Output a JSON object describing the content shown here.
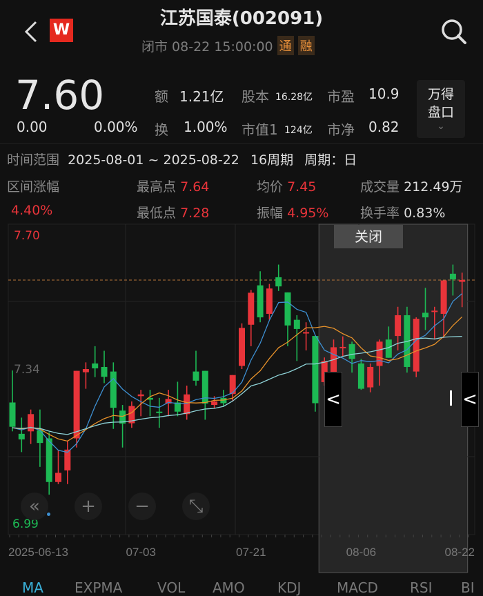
{
  "header": {
    "title": "江苏国泰(002091)",
    "status": "闭市 08-22 15:00:00",
    "badges": [
      "通",
      "融"
    ],
    "back_icon": "chevron-left-icon",
    "logo_letter": "W",
    "search_icon": "search-icon"
  },
  "quote": {
    "price": "7.60",
    "change": "0.00",
    "change_pct": "0.00%",
    "stats": [
      {
        "label": "额",
        "value": "1.21亿"
      },
      {
        "label": "股本",
        "value": "16.28亿"
      },
      {
        "label": "市盈",
        "value": "10.9"
      },
      {
        "label": "换",
        "value": "1.00%"
      },
      {
        "label": "市值1",
        "value": "124亿"
      },
      {
        "label": "市净",
        "value": "0.82"
      }
    ],
    "wind_button": [
      "万得",
      "盘口"
    ]
  },
  "range": {
    "label": "时间范围",
    "dates": "2025-08-01 ~ 2025-08-22",
    "periods": "16周期",
    "cycle": "周期：日",
    "change_label": "区间涨幅",
    "change_value": "4.40%",
    "high_label": "最高点",
    "high_value": "7.64",
    "low_label": "最低点",
    "low_value": "7.28",
    "avg_label": "均价",
    "avg_value": "7.45",
    "amp_label": "振幅",
    "amp_value": "4.95%",
    "vol_label": "成交量",
    "vol_value": "212.49万",
    "turnover_label": "换手率",
    "turnover_value": "0.83%"
  },
  "chart_data": {
    "type": "candlestick",
    "y_labels": {
      "top": "7.70",
      "mid": "7.34",
      "bottom": "6.99"
    },
    "reference_price": 7.6,
    "close_button": "关闭",
    "x_ticks": [
      {
        "index": 4,
        "label": "2025-06-13"
      },
      {
        "index": 14,
        "label": "07-03"
      },
      {
        "index": 26,
        "label": "07-21"
      },
      {
        "index": 38,
        "label": "08-06"
      },
      {
        "index": 49,
        "label": "08-22"
      }
    ],
    "selection": {
      "start_index": 34,
      "end_index": 49
    },
    "colors": {
      "up": "#e8343a",
      "down": "#1db954",
      "ma5": "#3d8fd1",
      "ma10": "#e8922a",
      "ma20": "#8fd3d8"
    },
    "ohlc": [
      [
        7.252,
        7.343,
        7.17,
        7.183
      ],
      [
        7.163,
        7.209,
        7.111,
        7.147
      ],
      [
        7.17,
        7.232,
        7.134,
        7.219
      ],
      [
        7.173,
        7.232,
        7.069,
        7.137
      ],
      [
        7.15,
        7.167,
        6.99,
        7.026
      ],
      [
        7.026,
        7.115,
        7.02,
        7.052
      ],
      [
        7.059,
        7.144,
        7.02,
        7.118
      ],
      [
        7.15,
        7.342,
        7.124,
        7.342
      ],
      [
        7.338,
        7.366,
        7.291,
        7.347
      ],
      [
        7.363,
        7.412,
        7.324,
        7.349
      ],
      [
        7.353,
        7.399,
        7.307,
        7.325
      ],
      [
        7.34,
        7.366,
        7.177,
        7.237
      ],
      [
        7.229,
        7.245,
        7.124,
        7.192
      ],
      [
        7.193,
        7.255,
        7.18,
        7.242
      ],
      [
        7.27,
        7.288,
        7.213,
        7.275
      ],
      [
        7.265,
        7.288,
        7.213,
        7.26
      ],
      [
        7.226,
        7.265,
        7.18,
        7.223
      ],
      [
        7.249,
        7.288,
        7.213,
        7.262
      ],
      [
        7.252,
        7.311,
        7.213,
        7.226
      ],
      [
        7.219,
        7.3,
        7.203,
        7.275
      ],
      [
        7.34,
        7.399,
        7.3,
        7.314
      ],
      [
        7.342,
        7.342,
        7.203,
        7.249
      ],
      [
        7.245,
        7.27,
        7.235,
        7.255
      ],
      [
        7.265,
        7.288,
        7.24,
        7.25
      ],
      [
        7.276,
        7.33,
        7.255,
        7.33
      ],
      [
        7.356,
        7.477,
        7.347,
        7.464
      ],
      [
        7.473,
        7.572,
        7.412,
        7.564
      ],
      [
        7.585,
        7.625,
        7.48,
        7.494
      ],
      [
        7.504,
        7.589,
        7.487,
        7.576
      ],
      [
        7.608,
        7.644,
        7.569,
        7.582
      ],
      [
        7.565,
        7.565,
        7.412,
        7.471
      ],
      [
        7.487,
        7.5,
        7.37,
        7.461
      ],
      [
        7.449,
        7.48,
        7.4,
        7.452
      ],
      [
        7.441,
        7.441,
        7.226,
        7.25
      ],
      [
        7.31,
        7.38,
        7.3,
        7.37
      ],
      [
        7.314,
        7.431,
        7.304,
        7.409
      ],
      [
        7.407,
        7.44,
        7.383,
        7.41
      ],
      [
        7.418,
        7.425,
        7.337,
        7.376
      ],
      [
        7.363,
        7.376,
        7.288,
        7.291
      ],
      [
        7.295,
        7.363,
        7.281,
        7.353
      ],
      [
        7.356,
        7.431,
        7.3,
        7.425
      ],
      [
        7.431,
        7.468,
        7.379,
        7.379
      ],
      [
        7.441,
        7.524,
        7.4,
        7.5
      ],
      [
        7.5,
        7.524,
        7.337,
        7.353
      ],
      [
        7.34,
        7.494,
        7.324,
        7.49
      ],
      [
        7.507,
        7.578,
        7.458,
        7.494
      ],
      [
        7.51,
        7.524,
        7.431,
        7.513
      ],
      [
        7.504,
        7.599,
        7.435,
        7.599
      ],
      [
        7.618,
        7.644,
        7.556,
        7.602
      ],
      [
        7.595,
        7.621,
        7.523,
        7.6
      ]
    ]
  },
  "chart_controls": [
    {
      "name": "scroll-left-button",
      "icon": "double-chevron-left-icon",
      "glyph": "«"
    },
    {
      "name": "zoom-in-button",
      "icon": "plus-icon",
      "glyph": "+"
    },
    {
      "name": "zoom-out-button",
      "icon": "minus-icon",
      "glyph": "−"
    },
    {
      "name": "fullscreen-button",
      "icon": "expand-icon",
      "glyph": "⤡"
    }
  ],
  "indicator_tabs": [
    "MA",
    "EXPMA",
    "VOL",
    "AMO",
    "KDJ",
    "MACD",
    "RSI",
    "BI"
  ]
}
